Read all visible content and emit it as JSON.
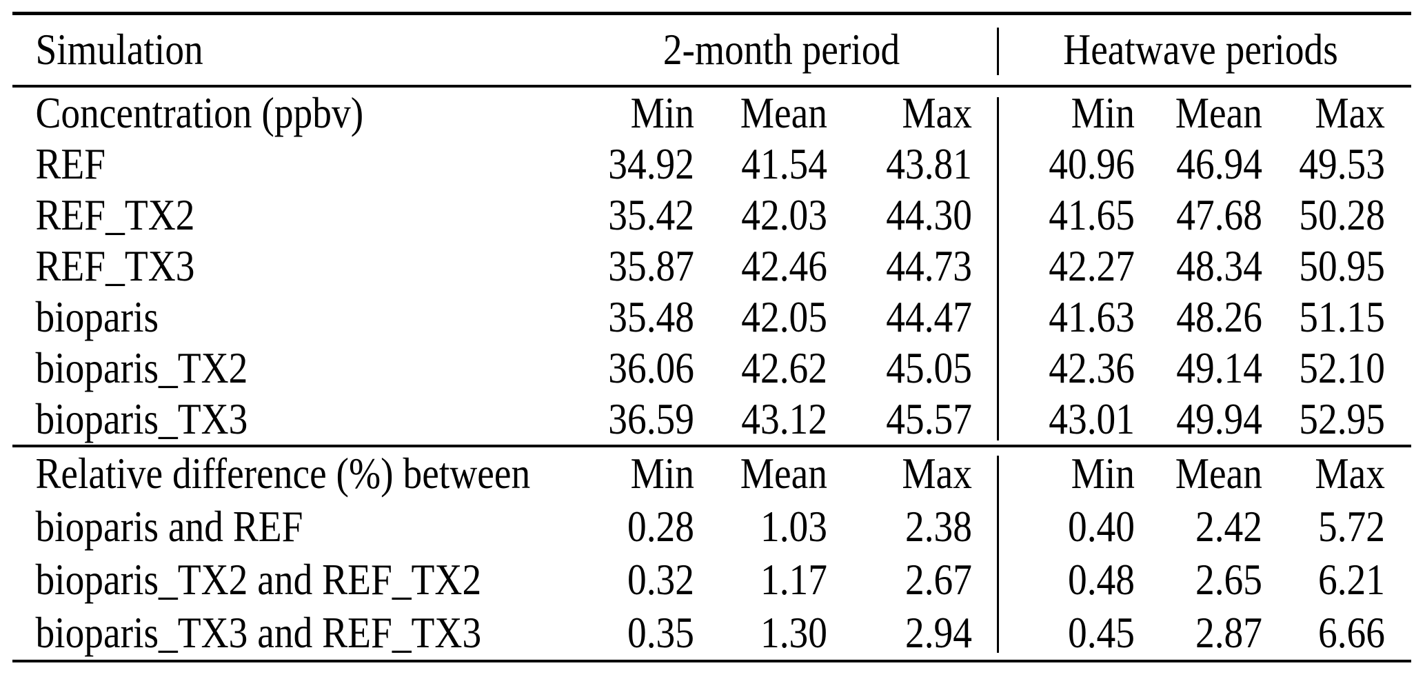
{
  "table": {
    "header": {
      "simulation": "Simulation",
      "two_month": "2-month period",
      "heatwave": "Heatwave periods"
    },
    "concentration": {
      "label": "Concentration (ppbv)",
      "subheaders": [
        "Min",
        "Mean",
        "Max",
        "Min",
        "Mean",
        "Max"
      ],
      "rows": [
        {
          "label": "REF",
          "values": [
            "34.92",
            "41.54",
            "43.81",
            "40.96",
            "46.94",
            "49.53"
          ]
        },
        {
          "label": "REF_TX2",
          "values": [
            "35.42",
            "42.03",
            "44.30",
            "41.65",
            "47.68",
            "50.28"
          ]
        },
        {
          "label": "REF_TX3",
          "values": [
            "35.87",
            "42.46",
            "44.73",
            "42.27",
            "48.34",
            "50.95"
          ]
        },
        {
          "label": "bioparis",
          "values": [
            "35.48",
            "42.05",
            "44.47",
            "41.63",
            "48.26",
            "51.15"
          ]
        },
        {
          "label": "bioparis_TX2",
          "values": [
            "36.06",
            "42.62",
            "45.05",
            "42.36",
            "49.14",
            "52.10"
          ]
        },
        {
          "label": "bioparis_TX3",
          "values": [
            "36.59",
            "43.12",
            "45.57",
            "43.01",
            "49.94",
            "52.95"
          ]
        }
      ]
    },
    "relative_difference": {
      "label": "Relative difference (%) between",
      "subheaders": [
        "Min",
        "Mean",
        "Max",
        "Min",
        "Mean",
        "Max"
      ],
      "rows": [
        {
          "label": "bioparis and REF",
          "values": [
            "0.28",
            "1.03",
            "2.38",
            "0.40",
            "2.42",
            "5.72"
          ]
        },
        {
          "label": "bioparis_TX2 and REF_TX2",
          "values": [
            "0.32",
            "1.17",
            "2.67",
            "0.48",
            "2.65",
            "6.21"
          ]
        },
        {
          "label": "bioparis_TX3 and REF_TX3",
          "values": [
            "0.35",
            "1.30",
            "2.94",
            "0.45",
            "2.87",
            "6.66"
          ]
        }
      ]
    }
  }
}
